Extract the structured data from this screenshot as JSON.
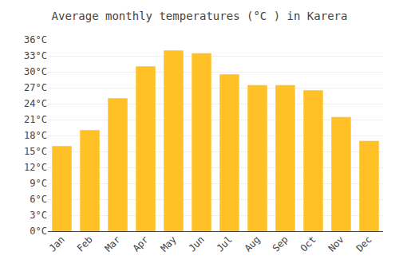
{
  "chart_data": {
    "type": "bar",
    "title": "Average monthly temperatures (°C ) in Karera",
    "categories": [
      "Jan",
      "Feb",
      "Mar",
      "Apr",
      "May",
      "Jun",
      "Jul",
      "Aug",
      "Sep",
      "Oct",
      "Nov",
      "Dec"
    ],
    "values": [
      16,
      19,
      25,
      31,
      34,
      33.5,
      29.5,
      27.5,
      27.5,
      26.5,
      21.5,
      17
    ],
    "color": "#FFC125",
    "ylim": [
      0,
      36
    ],
    "yticks": [
      {
        "value": 0,
        "label": "0°C"
      },
      {
        "value": 3,
        "label": "3°C"
      },
      {
        "value": 6,
        "label": "6°C"
      },
      {
        "value": 9,
        "label": "9°C"
      },
      {
        "value": 12,
        "label": "12°C"
      },
      {
        "value": 15,
        "label": "15°C"
      },
      {
        "value": 18,
        "label": "18°C"
      },
      {
        "value": 21,
        "label": "21°C"
      },
      {
        "value": 24,
        "label": "24°C"
      },
      {
        "value": 27,
        "label": "27°C"
      },
      {
        "value": 30,
        "label": "30°C"
      },
      {
        "value": 33,
        "label": "33°C"
      },
      {
        "value": 36,
        "label": "36°C"
      }
    ],
    "grid": true
  }
}
